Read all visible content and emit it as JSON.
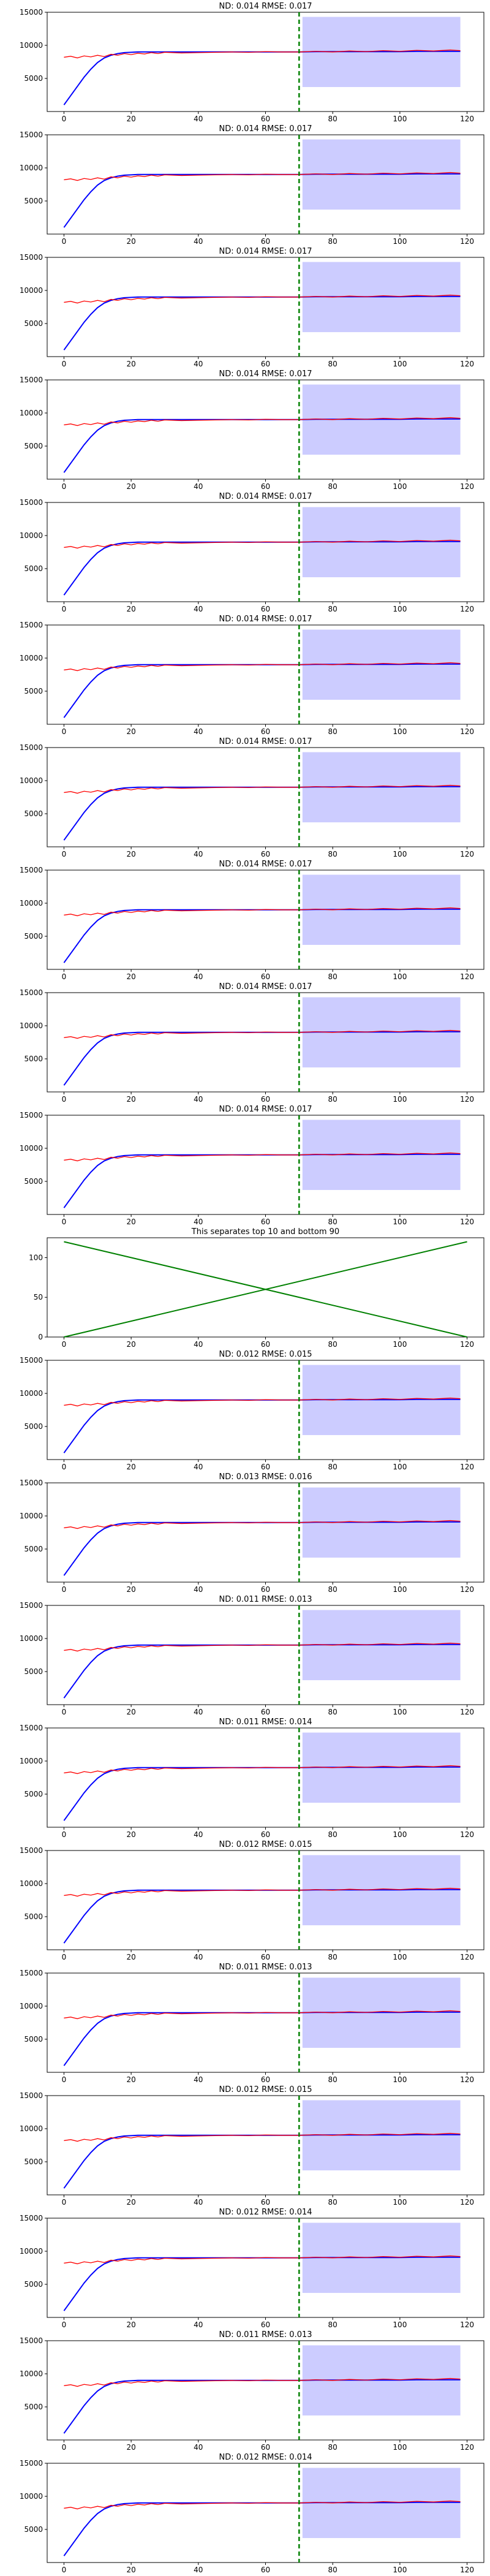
{
  "page": {
    "panel_count": 21
  },
  "colors": {
    "forecast": "#0000ff",
    "actual": "#ff0000",
    "interval_fill": "#ccccff",
    "split_line": "#008000",
    "separator_lines": "#008000"
  },
  "shared_series": {
    "x_main": [
      0,
      2,
      4,
      6,
      8,
      10,
      12,
      14,
      16,
      18,
      20,
      22,
      24,
      26,
      28,
      30,
      35,
      40,
      45,
      50,
      55,
      60,
      65,
      70,
      75,
      80,
      85,
      90,
      95,
      100,
      105,
      110,
      115,
      118
    ],
    "forecast": [
      1000,
      2400,
      3800,
      5200,
      6400,
      7400,
      8100,
      8500,
      8750,
      8900,
      8950,
      9000,
      9000,
      9000,
      9000,
      9000,
      9000,
      9000,
      9000,
      9000,
      9000,
      9000,
      9000,
      9000,
      9050,
      9050,
      9050,
      9050,
      9050,
      9050,
      9100,
      9100,
      9100,
      9100
    ],
    "actual": [
      8200,
      8350,
      8100,
      8400,
      8250,
      8500,
      8300,
      8650,
      8500,
      8750,
      8600,
      8800,
      8700,
      8900,
      8750,
      8950,
      8850,
      8900,
      8950,
      9000,
      8950,
      9050,
      9000,
      9000,
      9100,
      9000,
      9150,
      9050,
      9200,
      9100,
      9250,
      9150,
      9300,
      9200
    ],
    "interval": {
      "x_start": 71,
      "x_end": 118,
      "lower": 3700,
      "upper": 14300
    },
    "split_x": 70,
    "xlim": [
      -5,
      125
    ],
    "ylim": [
      0,
      15000
    ],
    "xticks": [
      0,
      20,
      40,
      60,
      80,
      100,
      120
    ],
    "yticks": [
      5000,
      10000,
      15000
    ]
  },
  "chart_data": [
    {
      "type": "line",
      "title": "ND:  0.014 RMSE:  0.017"
    },
    {
      "type": "line",
      "title": "ND:  0.014 RMSE:  0.017"
    },
    {
      "type": "line",
      "title": "ND:  0.014 RMSE:  0.017"
    },
    {
      "type": "line",
      "title": "ND:  0.014 RMSE:  0.017"
    },
    {
      "type": "line",
      "title": "ND:  0.014 RMSE:  0.017"
    },
    {
      "type": "line",
      "title": "ND:  0.014 RMSE:  0.017"
    },
    {
      "type": "line",
      "title": "ND:  0.014 RMSE:  0.017"
    },
    {
      "type": "line",
      "title": "ND:  0.014 RMSE:  0.017"
    },
    {
      "type": "line",
      "title": "ND:  0.014 RMSE:  0.017"
    },
    {
      "type": "line",
      "title": "ND:  0.014 RMSE:  0.017"
    },
    {
      "type": "line",
      "title": "This separates top 10 and bottom 90",
      "separator": true,
      "series": [
        {
          "x": [
            0,
            120
          ],
          "values": [
            120,
            0
          ]
        },
        {
          "x": [
            0,
            120
          ],
          "values": [
            0,
            120
          ]
        }
      ],
      "xlim": [
        -5,
        125
      ],
      "ylim": [
        0,
        125
      ],
      "xticks": [
        0,
        20,
        40,
        60,
        80,
        100,
        120
      ],
      "yticks": [
        0,
        50,
        100
      ]
    },
    {
      "type": "line",
      "title": "ND:  0.012 RMSE:  0.015"
    },
    {
      "type": "line",
      "title": "ND:  0.013 RMSE:  0.016"
    },
    {
      "type": "line",
      "title": "ND:  0.011 RMSE:  0.013"
    },
    {
      "type": "line",
      "title": "ND:  0.011 RMSE:  0.014"
    },
    {
      "type": "line",
      "title": "ND:  0.012 RMSE:  0.015"
    },
    {
      "type": "line",
      "title": "ND:  0.011 RMSE:  0.013"
    },
    {
      "type": "line",
      "title": "ND:  0.012 RMSE:  0.015"
    },
    {
      "type": "line",
      "title": "ND:  0.012 RMSE:  0.014"
    },
    {
      "type": "line",
      "title": "ND:  0.011 RMSE:  0.013"
    },
    {
      "type": "line",
      "title": "ND:  0.012 RMSE:  0.014"
    }
  ]
}
